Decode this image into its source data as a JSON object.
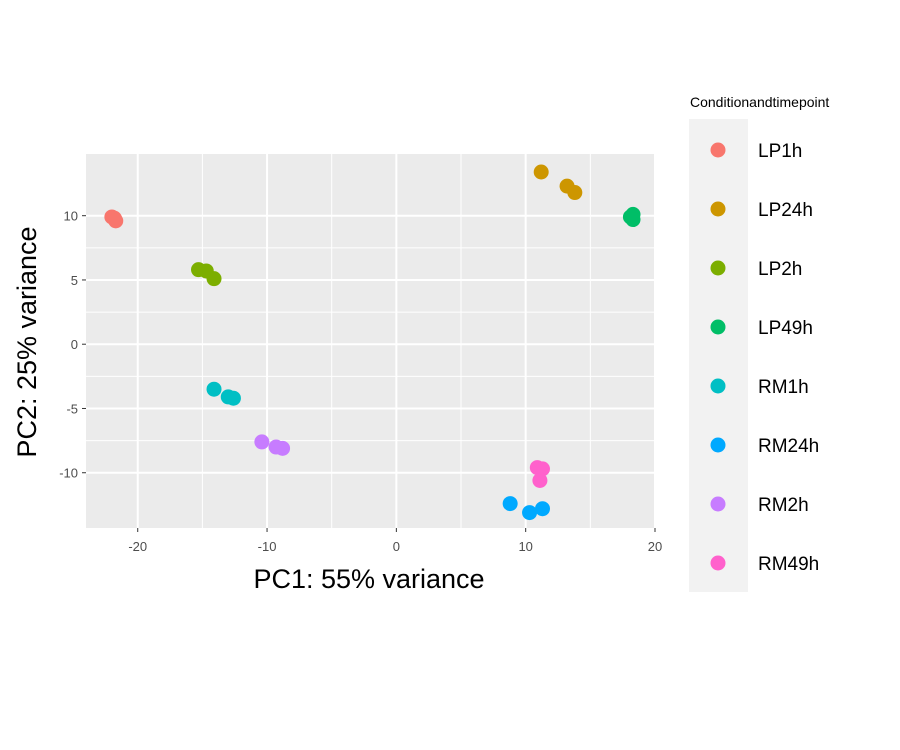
{
  "chart_data": {
    "type": "scatter",
    "title": "",
    "xlabel": "PC1: 55% variance",
    "ylabel": "PC2: 25% variance",
    "xlim": [
      -24,
      20
    ],
    "ylim": [
      -14.3,
      14.8
    ],
    "xticks": [
      -20,
      -10,
      0,
      10,
      20
    ],
    "yticks": [
      -10,
      -5,
      0,
      5,
      10
    ],
    "grid": true,
    "legend_title": "Conditionandtimepoint",
    "legend_position": "right",
    "series": [
      {
        "name": "LP1h",
        "color": "#F8766D",
        "points": [
          [
            -22.0,
            9.9
          ],
          [
            -21.8,
            9.8
          ],
          [
            -21.7,
            9.6
          ]
        ]
      },
      {
        "name": "LP24h",
        "color": "#CD9600",
        "points": [
          [
            11.2,
            13.4
          ],
          [
            13.2,
            12.3
          ],
          [
            13.8,
            11.8
          ]
        ]
      },
      {
        "name": "LP2h",
        "color": "#7CAE00",
        "points": [
          [
            -15.3,
            5.8
          ],
          [
            -14.7,
            5.7
          ],
          [
            -14.1,
            5.1
          ]
        ]
      },
      {
        "name": "LP49h",
        "color": "#00BE67",
        "points": [
          [
            18.1,
            9.9
          ],
          [
            18.3,
            10.1
          ],
          [
            18.3,
            9.7
          ]
        ]
      },
      {
        "name": "RM1h",
        "color": "#00BFC4",
        "points": [
          [
            -14.1,
            -3.5
          ],
          [
            -13.0,
            -4.1
          ],
          [
            -12.6,
            -4.2
          ]
        ]
      },
      {
        "name": "RM24h",
        "color": "#00A9FF",
        "points": [
          [
            8.8,
            -12.4
          ],
          [
            10.3,
            -13.1
          ],
          [
            11.3,
            -12.8
          ]
        ]
      },
      {
        "name": "RM2h",
        "color": "#C77CFF",
        "points": [
          [
            -10.4,
            -7.6
          ],
          [
            -9.3,
            -8.0
          ],
          [
            -8.8,
            -8.1
          ]
        ]
      },
      {
        "name": "RM49h",
        "color": "#FF61CC",
        "points": [
          [
            10.9,
            -9.6
          ],
          [
            11.3,
            -9.7
          ],
          [
            11.1,
            -10.6
          ]
        ]
      }
    ]
  }
}
